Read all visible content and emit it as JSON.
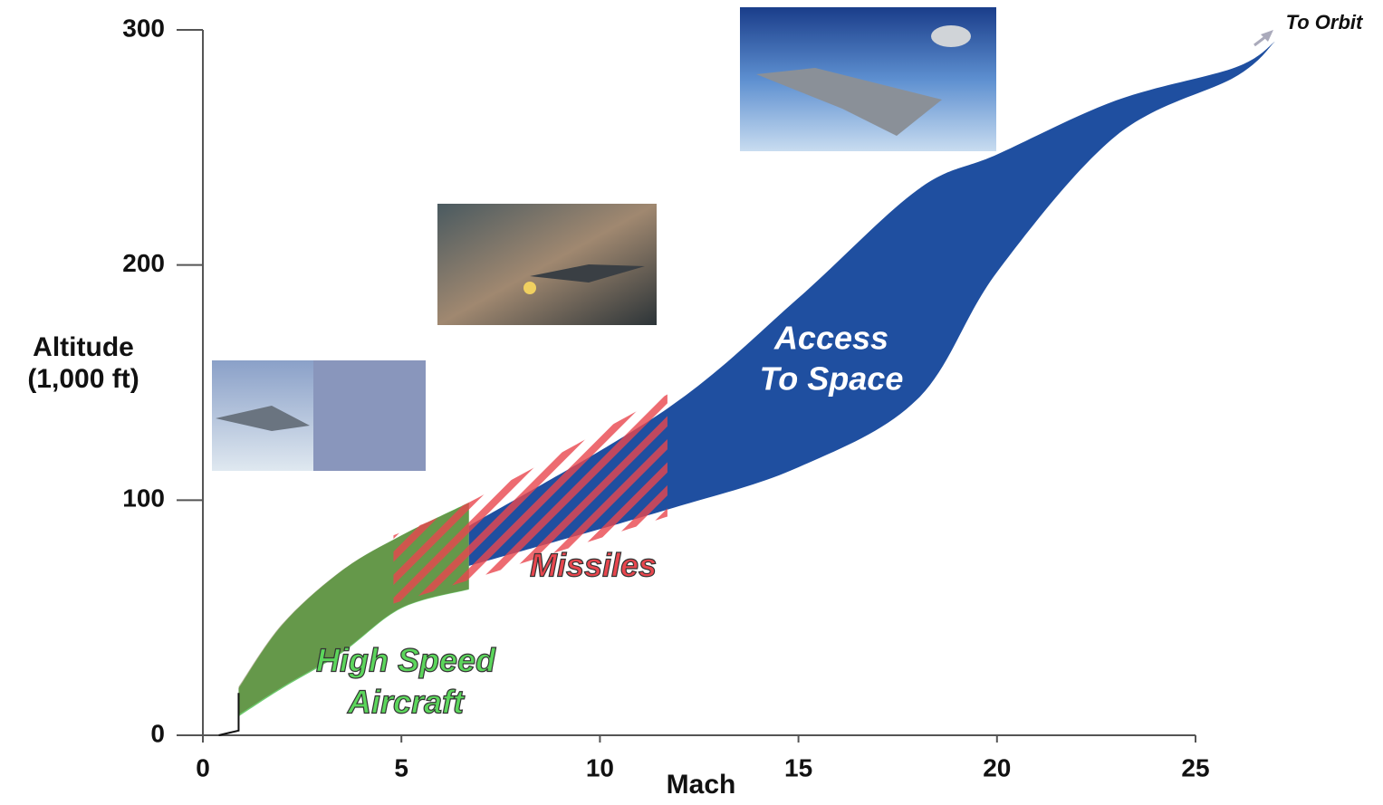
{
  "chart_data": {
    "type": "range_area",
    "xlabel": "Mach",
    "ylabel": [
      "Altitude",
      "(1,000 ft)"
    ],
    "xlim": [
      0,
      25
    ],
    "ylim": [
      0,
      300
    ],
    "xticks": [
      0,
      5,
      10,
      15,
      20,
      25
    ],
    "yticks": [
      0,
      100,
      200,
      300
    ],
    "annotation": "To Orbit",
    "series": [
      {
        "label": [
          "High Speed",
          "Aircraft"
        ],
        "color": "#3cb83c",
        "x": [
          0.9,
          2,
          3.5,
          5,
          6.7
        ],
        "upper": [
          20,
          47,
          70,
          85,
          99
        ],
        "lower": [
          8,
          20,
          35,
          54,
          62
        ]
      },
      {
        "label": [
          "Access",
          "To Space"
        ],
        "color": "#1f4fa0",
        "x": [
          6.7,
          11.7,
          15,
          18,
          20,
          23,
          26,
          27
        ],
        "upper": [
          89,
          139,
          186,
          232,
          247,
          270,
          284,
          295
        ],
        "lower": [
          72,
          96,
          114,
          143,
          197,
          255,
          280,
          295
        ]
      },
      {
        "label": [
          "Missiles"
        ],
        "color": "#e8464e",
        "x": [
          4.8,
          6.7,
          11.7
        ],
        "upper": [
          85,
          99,
          145
        ],
        "lower": [
          56,
          66,
          93
        ]
      }
    ],
    "ascent": {
      "color": "#111111",
      "x": [
        0.4,
        0.9,
        0.9
      ],
      "values": [
        0,
        2,
        18
      ]
    }
  }
}
